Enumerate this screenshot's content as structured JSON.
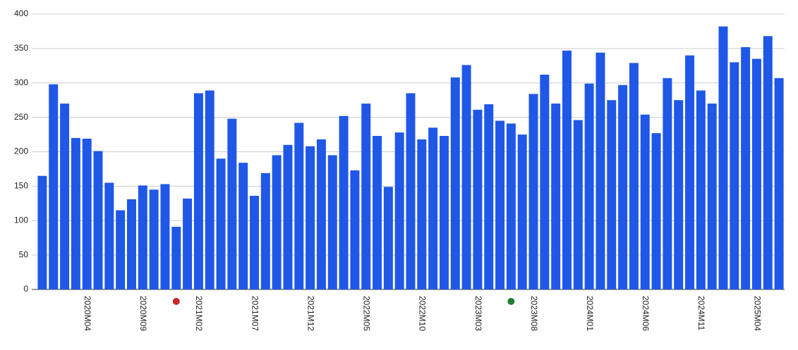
{
  "chart_data": {
    "type": "bar",
    "categories": [
      null,
      null,
      null,
      null,
      "2020M04",
      null,
      null,
      null,
      null,
      "2020M09",
      null,
      null,
      null,
      null,
      "2021M02",
      null,
      null,
      null,
      null,
      "2021M07",
      null,
      null,
      null,
      null,
      "2021M12",
      null,
      null,
      null,
      null,
      "2022M05",
      null,
      null,
      null,
      null,
      "2022M10",
      null,
      null,
      null,
      null,
      "2023M03",
      null,
      null,
      null,
      null,
      "2023M08",
      null,
      null,
      null,
      null,
      "2024M01",
      null,
      null,
      null,
      null,
      "2024M06",
      null,
      null,
      null,
      null,
      "2024M11",
      null,
      null,
      null,
      null,
      "2025M04",
      null,
      null
    ],
    "values": [
      165,
      298,
      270,
      220,
      219,
      201,
      155,
      115,
      131,
      151,
      145,
      153,
      91,
      132,
      285,
      289,
      190,
      248,
      184,
      136,
      169,
      195,
      210,
      242,
      208,
      218,
      195,
      252,
      173,
      270,
      223,
      149,
      228,
      285,
      218,
      235,
      223,
      308,
      326,
      261,
      269,
      245,
      241,
      225,
      284,
      312,
      270,
      347,
      246,
      299,
      344,
      275,
      297,
      329,
      254,
      227,
      307,
      275,
      340,
      289,
      270,
      382,
      330,
      352,
      335,
      368,
      307
    ],
    "color": "#1f57e7",
    "ylim": [
      0,
      400
    ],
    "yticks": [
      0,
      50,
      100,
      150,
      200,
      250,
      300,
      350,
      400
    ],
    "grid": true,
    "markers": [
      {
        "at": 12,
        "color": "#c62828"
      },
      {
        "at": 42,
        "color": "#1e7e34"
      }
    ]
  }
}
